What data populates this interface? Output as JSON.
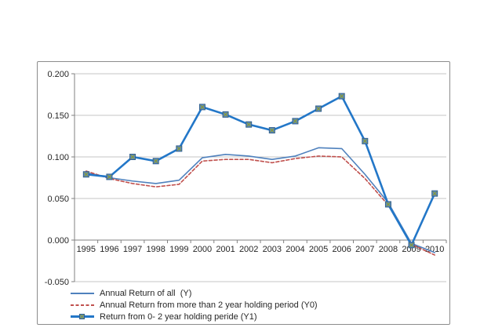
{
  "chart_data": {
    "type": "line",
    "title": "",
    "xlabel": "",
    "ylabel": "",
    "categories": [
      "1995",
      "1996",
      "1997",
      "1998",
      "1999",
      "2000",
      "2001",
      "2002",
      "2003",
      "2004",
      "2005",
      "2006",
      "2007",
      "2008",
      "2009",
      "2010"
    ],
    "ylim": [
      -0.05,
      0.2
    ],
    "y_ticks": [
      {
        "value": 0.2,
        "label": "0.200"
      },
      {
        "value": 0.15,
        "label": "0.150"
      },
      {
        "value": 0.1,
        "label": "0.100"
      },
      {
        "value": 0.05,
        "label": "0.050"
      },
      {
        "value": 0.0,
        "label": "0.000"
      },
      {
        "value": -0.05,
        "label": "-0.050"
      }
    ],
    "grid": true,
    "legend_position": "bottom-left",
    "axis_color": "#808080",
    "grid_color": "#c6c6c6",
    "label_color": "#262626",
    "series": [
      {
        "name": "Annual Return of all  (Y)",
        "key": "Y",
        "color": "#4f81bd",
        "line_style": "solid",
        "line_width": 1.6,
        "marker": "none",
        "values": [
          0.081,
          0.075,
          0.071,
          0.068,
          0.072,
          0.099,
          0.103,
          0.101,
          0.097,
          0.101,
          0.111,
          0.11,
          0.079,
          0.045,
          -0.004,
          -0.015
        ]
      },
      {
        "name": "Annual Return from more than 2 year holding period (Y0)",
        "key": "Y0",
        "color": "#c0504d",
        "line_style": "dashed",
        "line_width": 1.6,
        "marker": "none",
        "values": [
          0.083,
          0.074,
          0.068,
          0.064,
          0.067,
          0.095,
          0.097,
          0.097,
          0.093,
          0.098,
          0.101,
          0.1,
          0.074,
          0.042,
          -0.005,
          -0.018
        ]
      },
      {
        "name": "Return from 0- 2 year holding peride (Y1)",
        "key": "Y1",
        "color": "#2377c8",
        "line_style": "solid",
        "line_width": 2.6,
        "marker": "square-x",
        "marker_fill": "#5e8bc0",
        "marker_border": "#31608f",
        "marker_x_color": "#8a9a33",
        "values": [
          0.079,
          0.076,
          0.1,
          0.095,
          0.11,
          0.16,
          0.151,
          0.139,
          0.132,
          0.143,
          0.158,
          0.173,
          0.119,
          0.043,
          -0.006,
          0.056
        ]
      }
    ]
  }
}
